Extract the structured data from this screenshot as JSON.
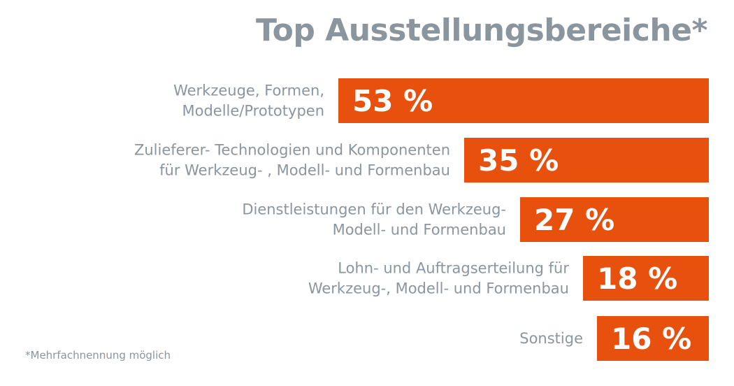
{
  "title": "Top Ausstellungsbereiche*",
  "footnote": "*Mehrfachnennung möglich",
  "colors": {
    "bar": "#e8500e",
    "text": "#8a959d",
    "value_text": "#ffffff"
  },
  "chart_data": {
    "type": "bar",
    "orientation": "horizontal",
    "title": "Top Ausstellungsbereiche*",
    "categories": [
      [
        "Werkzeuge, Formen,",
        "Modelle/Prototypen"
      ],
      [
        "Zulieferer- Technologien und Komponenten",
        "für Werkzeug- , Modell- und Formenbau"
      ],
      [
        "Dienstleistungen für den Werkzeug-",
        "Modell- und Formenbau"
      ],
      [
        "Lohn- und Auftragserteilung für",
        "Werkzeug-, Modell- und Formenbau"
      ],
      [
        "Sonstige"
      ]
    ],
    "values": [
      53,
      35,
      27,
      18,
      16
    ],
    "value_labels": [
      "53 %",
      "35 %",
      "27 %",
      "18 %",
      "16 %"
    ],
    "unit": "%",
    "grid": false,
    "legend": "none",
    "bar_anchor": "right"
  }
}
